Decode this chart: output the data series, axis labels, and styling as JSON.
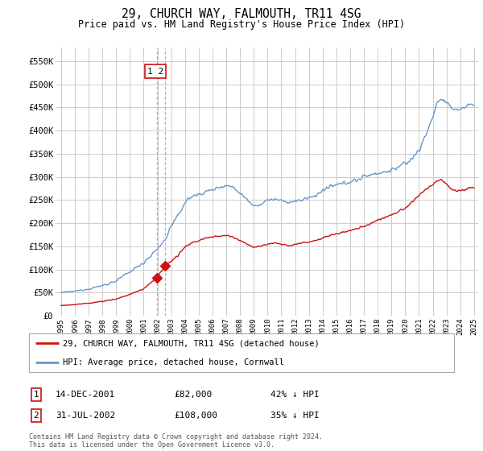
{
  "title": "29, CHURCH WAY, FALMOUTH, TR11 4SG",
  "subtitle": "Price paid vs. HM Land Registry's House Price Index (HPI)",
  "x_start_year": 1995,
  "x_end_year": 2025,
  "y_min": 0,
  "y_max": 580000,
  "yticks": [
    0,
    50000,
    100000,
    150000,
    200000,
    250000,
    300000,
    350000,
    400000,
    450000,
    500000,
    550000
  ],
  "ytick_labels": [
    "£0",
    "£50K",
    "£100K",
    "£150K",
    "£200K",
    "£250K",
    "£300K",
    "£350K",
    "£400K",
    "£450K",
    "£500K",
    "£550K"
  ],
  "hpi_color": "#6699cc",
  "price_color": "#cc1111",
  "dashed_line_color": "#e88888",
  "grid_color": "#cccccc",
  "bg_color": "#ffffff",
  "legend_label_price": "29, CHURCH WAY, FALMOUTH, TR11 4SG (detached house)",
  "legend_label_hpi": "HPI: Average price, detached house, Cornwall",
  "sale1_label": "1",
  "sale1_date": "14-DEC-2001",
  "sale1_price": "£82,000",
  "sale1_hpi": "42% ↓ HPI",
  "sale1_year": 2001.95,
  "sale1_value": 82000,
  "sale2_label": "2",
  "sale2_date": "31-JUL-2002",
  "sale2_price": "£108,000",
  "sale2_hpi": "35% ↓ HPI",
  "sale2_year": 2002.58,
  "sale2_value": 108000,
  "footnote": "Contains HM Land Registry data © Crown copyright and database right 2024.\nThis data is licensed under the Open Government Licence v3.0."
}
